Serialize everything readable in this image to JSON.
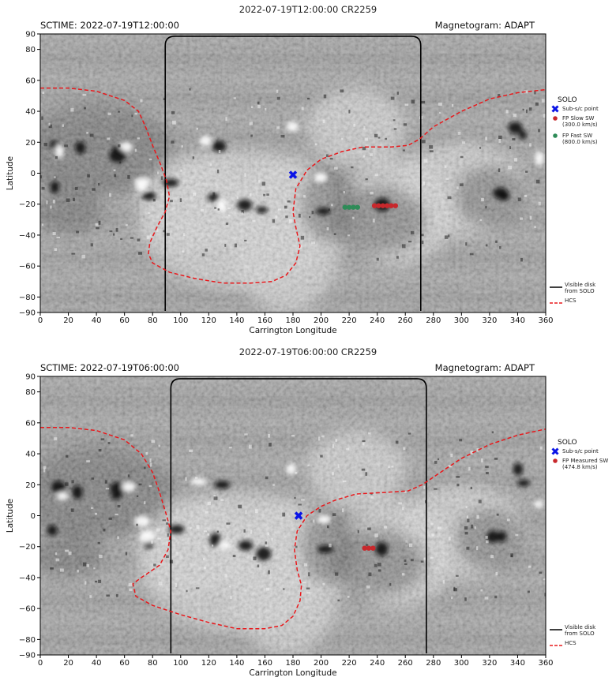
{
  "chart_data": [
    {
      "type": "scatter",
      "title": "2022-07-19T12:00:00 CR2259",
      "left_label": "SCTIME: 2022-07-19T12:00:00",
      "right_label": "Magnetogram: ADAPT",
      "xlabel": "Carrington Longitude",
      "ylabel": "Latitude",
      "xlim": [
        0,
        360
      ],
      "ylim": [
        -90,
        90
      ],
      "xticks": [
        0,
        20,
        40,
        60,
        80,
        100,
        120,
        140,
        160,
        180,
        200,
        220,
        240,
        260,
        280,
        300,
        320,
        340,
        360
      ],
      "yticks": [
        -90,
        -80,
        -60,
        -40,
        -20,
        0,
        20,
        40,
        60,
        80,
        90
      ],
      "legend_title": "SOLO",
      "legend_placement": "right",
      "legend": [
        {
          "label": "Sub-s/c point",
          "marker": "x",
          "color": "#0a14e6"
        },
        {
          "label": "FP Slow SW\n(300.0 km/s)",
          "marker": "dot",
          "color": "#c8282c"
        },
        {
          "label": "FP Fast SW\n(800.0 km/s)",
          "marker": "dot",
          "color": "#2e8b57"
        }
      ],
      "legend_lower": [
        {
          "label": "Visible disk\nfrom SOLO",
          "style": "solid",
          "color": "#000000"
        },
        {
          "label": "HCS",
          "style": "dashed",
          "color": "#e8191c"
        }
      ],
      "subsc_point": {
        "x": 180,
        "y": -1
      },
      "footpoints": [
        {
          "name": "slow",
          "color": "#c8282c",
          "points": [
            [
              238,
              -21
            ],
            [
              241,
              -21
            ],
            [
              244,
              -21
            ],
            [
              247,
              -21
            ],
            [
              250,
              -21
            ],
            [
              253,
              -21
            ]
          ]
        },
        {
          "name": "fast",
          "color": "#2e8b57",
          "points": [
            [
              217,
              -22
            ],
            [
              220,
              -22
            ],
            [
              223,
              -22
            ],
            [
              226,
              -22
            ]
          ]
        }
      ],
      "visible_disk": {
        "x_left": 89,
        "x_right": 271
      },
      "hcs": [
        [
          0,
          55
        ],
        [
          20,
          55
        ],
        [
          40,
          53
        ],
        [
          60,
          47
        ],
        [
          70,
          40
        ],
        [
          75,
          30
        ],
        [
          80,
          18
        ],
        [
          86,
          5
        ],
        [
          90,
          -5
        ],
        [
          92,
          -15
        ],
        [
          89,
          -25
        ],
        [
          83,
          -35
        ],
        [
          78,
          -45
        ],
        [
          77,
          -52
        ],
        [
          80,
          -58
        ],
        [
          92,
          -64
        ],
        [
          110,
          -68
        ],
        [
          130,
          -71
        ],
        [
          150,
          -71
        ],
        [
          165,
          -70
        ],
        [
          175,
          -66
        ],
        [
          182,
          -58
        ],
        [
          185,
          -47
        ],
        [
          182,
          -35
        ],
        [
          180,
          -25
        ],
        [
          182,
          -10
        ],
        [
          190,
          2
        ],
        [
          200,
          9
        ],
        [
          215,
          14
        ],
        [
          230,
          17
        ],
        [
          250,
          17
        ],
        [
          262,
          18
        ],
        [
          270,
          22
        ],
        [
          280,
          30
        ],
        [
          300,
          40
        ],
        [
          320,
          48
        ],
        [
          340,
          52
        ],
        [
          360,
          54
        ]
      ]
    },
    {
      "type": "scatter",
      "title": "2022-07-19T06:00:00 CR2259",
      "left_label": "SCTIME: 2022-07-19T06:00:00",
      "right_label": "Magnetogram: ADAPT",
      "xlabel": "Carrington Longitude",
      "ylabel": "Latitude",
      "xlim": [
        0,
        360
      ],
      "ylim": [
        -90,
        90
      ],
      "xticks": [
        0,
        20,
        40,
        60,
        80,
        100,
        120,
        140,
        160,
        180,
        200,
        220,
        240,
        260,
        280,
        300,
        320,
        340,
        360
      ],
      "yticks": [
        -90,
        -80,
        -60,
        -40,
        -20,
        0,
        20,
        40,
        60,
        80,
        90
      ],
      "legend_title": "SOLO",
      "legend_placement": "right",
      "legend": [
        {
          "label": "Sub-s/c point",
          "marker": "x",
          "color": "#0a14e6"
        },
        {
          "label": "FP Measured SW\n(474.8 km/s)",
          "marker": "dot",
          "color": "#c8282c"
        }
      ],
      "legend_lower": [
        {
          "label": "Visible disk\nfrom SOLO",
          "style": "solid",
          "color": "#000000"
        },
        {
          "label": "HCS",
          "style": "dashed",
          "color": "#e8191c"
        }
      ],
      "subsc_point": {
        "x": 184,
        "y": 0
      },
      "footpoints": [
        {
          "name": "measured",
          "color": "#c8282c",
          "points": [
            [
              231,
              -21
            ],
            [
              234,
              -21
            ],
            [
              237,
              -21
            ]
          ]
        }
      ],
      "visible_disk": {
        "x_left": 93,
        "x_right": 275
      },
      "hcs": [
        [
          0,
          57
        ],
        [
          20,
          57
        ],
        [
          40,
          55
        ],
        [
          60,
          49
        ],
        [
          72,
          40
        ],
        [
          80,
          28
        ],
        [
          85,
          15
        ],
        [
          90,
          0
        ],
        [
          93,
          -10
        ],
        [
          91,
          -22
        ],
        [
          85,
          -32
        ],
        [
          72,
          -40
        ],
        [
          66,
          -44
        ],
        [
          68,
          -52
        ],
        [
          80,
          -58
        ],
        [
          100,
          -64
        ],
        [
          120,
          -69
        ],
        [
          140,
          -73
        ],
        [
          160,
          -73
        ],
        [
          172,
          -71
        ],
        [
          180,
          -65
        ],
        [
          185,
          -55
        ],
        [
          186,
          -45
        ],
        [
          183,
          -35
        ],
        [
          181,
          -22
        ],
        [
          183,
          -10
        ],
        [
          190,
          0
        ],
        [
          200,
          6
        ],
        [
          210,
          10
        ],
        [
          225,
          14
        ],
        [
          245,
          15
        ],
        [
          262,
          16
        ],
        [
          272,
          20
        ],
        [
          285,
          28
        ],
        [
          300,
          37
        ],
        [
          320,
          46
        ],
        [
          340,
          52
        ],
        [
          360,
          56
        ]
      ]
    }
  ]
}
